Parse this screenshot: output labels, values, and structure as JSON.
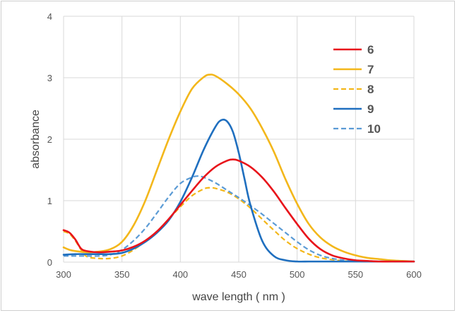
{
  "chart_data": {
    "type": "line",
    "title": "",
    "xlabel": "wave length ( nm )",
    "ylabel": "absorbance",
    "xlim": [
      300,
      600
    ],
    "ylim": [
      0,
      4
    ],
    "xticks": [
      300,
      350,
      400,
      450,
      500,
      550,
      600
    ],
    "yticks": [
      0,
      1,
      2,
      3,
      4
    ],
    "grid": "vertical and horizontal major gridlines",
    "legend_position": "top-right",
    "series": [
      {
        "name": "6",
        "color": "#e8141b",
        "dash": "solid",
        "x": [
          300,
          305,
          310,
          315,
          320,
          330,
          340,
          350,
          360,
          370,
          380,
          390,
          400,
          410,
          420,
          430,
          440,
          445,
          450,
          460,
          470,
          480,
          490,
          500,
          510,
          520,
          530,
          540,
          550,
          560,
          570,
          580,
          590,
          600
        ],
        "y": [
          0.52,
          0.48,
          0.37,
          0.22,
          0.18,
          0.16,
          0.17,
          0.19,
          0.25,
          0.35,
          0.5,
          0.7,
          0.93,
          1.16,
          1.38,
          1.55,
          1.65,
          1.67,
          1.65,
          1.55,
          1.38,
          1.15,
          0.88,
          0.62,
          0.38,
          0.21,
          0.11,
          0.06,
          0.03,
          0.02,
          0.01,
          0.01,
          0.01,
          0.01
        ]
      },
      {
        "name": "7",
        "color": "#f3b71b",
        "dash": "solid",
        "x": [
          300,
          305,
          310,
          320,
          330,
          340,
          350,
          360,
          370,
          380,
          390,
          400,
          410,
          420,
          425,
          430,
          440,
          450,
          460,
          470,
          480,
          490,
          500,
          510,
          520,
          530,
          540,
          550,
          560,
          570,
          580,
          590,
          600
        ],
        "y": [
          0.24,
          0.2,
          0.18,
          0.16,
          0.17,
          0.21,
          0.33,
          0.6,
          1.0,
          1.5,
          2.0,
          2.45,
          2.82,
          3.01,
          3.05,
          3.03,
          2.9,
          2.73,
          2.5,
          2.18,
          1.8,
          1.35,
          0.95,
          0.62,
          0.4,
          0.26,
          0.17,
          0.11,
          0.07,
          0.05,
          0.03,
          0.02,
          0.01
        ]
      },
      {
        "name": "8",
        "color": "#f3b71b",
        "dash": "dashed",
        "x": [
          300,
          305,
          310,
          315,
          320,
          330,
          340,
          350,
          360,
          370,
          380,
          390,
          400,
          410,
          420,
          425,
          430,
          440,
          450,
          460,
          470,
          480,
          490,
          500,
          510,
          520,
          530,
          540,
          550,
          560,
          570,
          580,
          590,
          600
        ],
        "y": [
          0.5,
          0.46,
          0.35,
          0.2,
          0.09,
          0.06,
          0.06,
          0.1,
          0.2,
          0.34,
          0.5,
          0.7,
          0.9,
          1.08,
          1.19,
          1.21,
          1.2,
          1.14,
          1.03,
          0.88,
          0.7,
          0.52,
          0.35,
          0.22,
          0.13,
          0.07,
          0.04,
          0.02,
          0.01,
          0.01,
          0.01,
          0.01,
          0.01,
          0.01
        ]
      },
      {
        "name": "9",
        "color": "#1f6fbf",
        "dash": "solid",
        "x": [
          300,
          310,
          320,
          330,
          340,
          350,
          360,
          370,
          380,
          390,
          400,
          410,
          420,
          430,
          435,
          440,
          445,
          450,
          455,
          460,
          470,
          480,
          490,
          500,
          510,
          520,
          540,
          560,
          580,
          600
        ],
        "y": [
          0.12,
          0.13,
          0.13,
          0.13,
          0.13,
          0.15,
          0.22,
          0.33,
          0.48,
          0.68,
          0.98,
          1.38,
          1.83,
          2.2,
          2.31,
          2.29,
          2.12,
          1.78,
          1.35,
          0.93,
          0.35,
          0.1,
          0.03,
          0.01,
          0.01,
          0.01,
          0.01,
          0.01,
          0.01,
          0.01
        ]
      },
      {
        "name": "10",
        "color": "#5b9bd5",
        "dash": "dashed",
        "x": [
          300,
          310,
          320,
          330,
          340,
          350,
          360,
          370,
          380,
          390,
          400,
          410,
          415,
          420,
          430,
          440,
          450,
          460,
          470,
          480,
          490,
          500,
          510,
          520,
          530,
          540,
          550,
          560,
          580,
          600
        ],
        "y": [
          0.1,
          0.1,
          0.1,
          0.1,
          0.12,
          0.2,
          0.35,
          0.55,
          0.8,
          1.06,
          1.28,
          1.38,
          1.4,
          1.38,
          1.29,
          1.17,
          1.05,
          0.92,
          0.78,
          0.63,
          0.48,
          0.33,
          0.2,
          0.11,
          0.06,
          0.03,
          0.02,
          0.01,
          0.01,
          0.01
        ]
      }
    ]
  }
}
